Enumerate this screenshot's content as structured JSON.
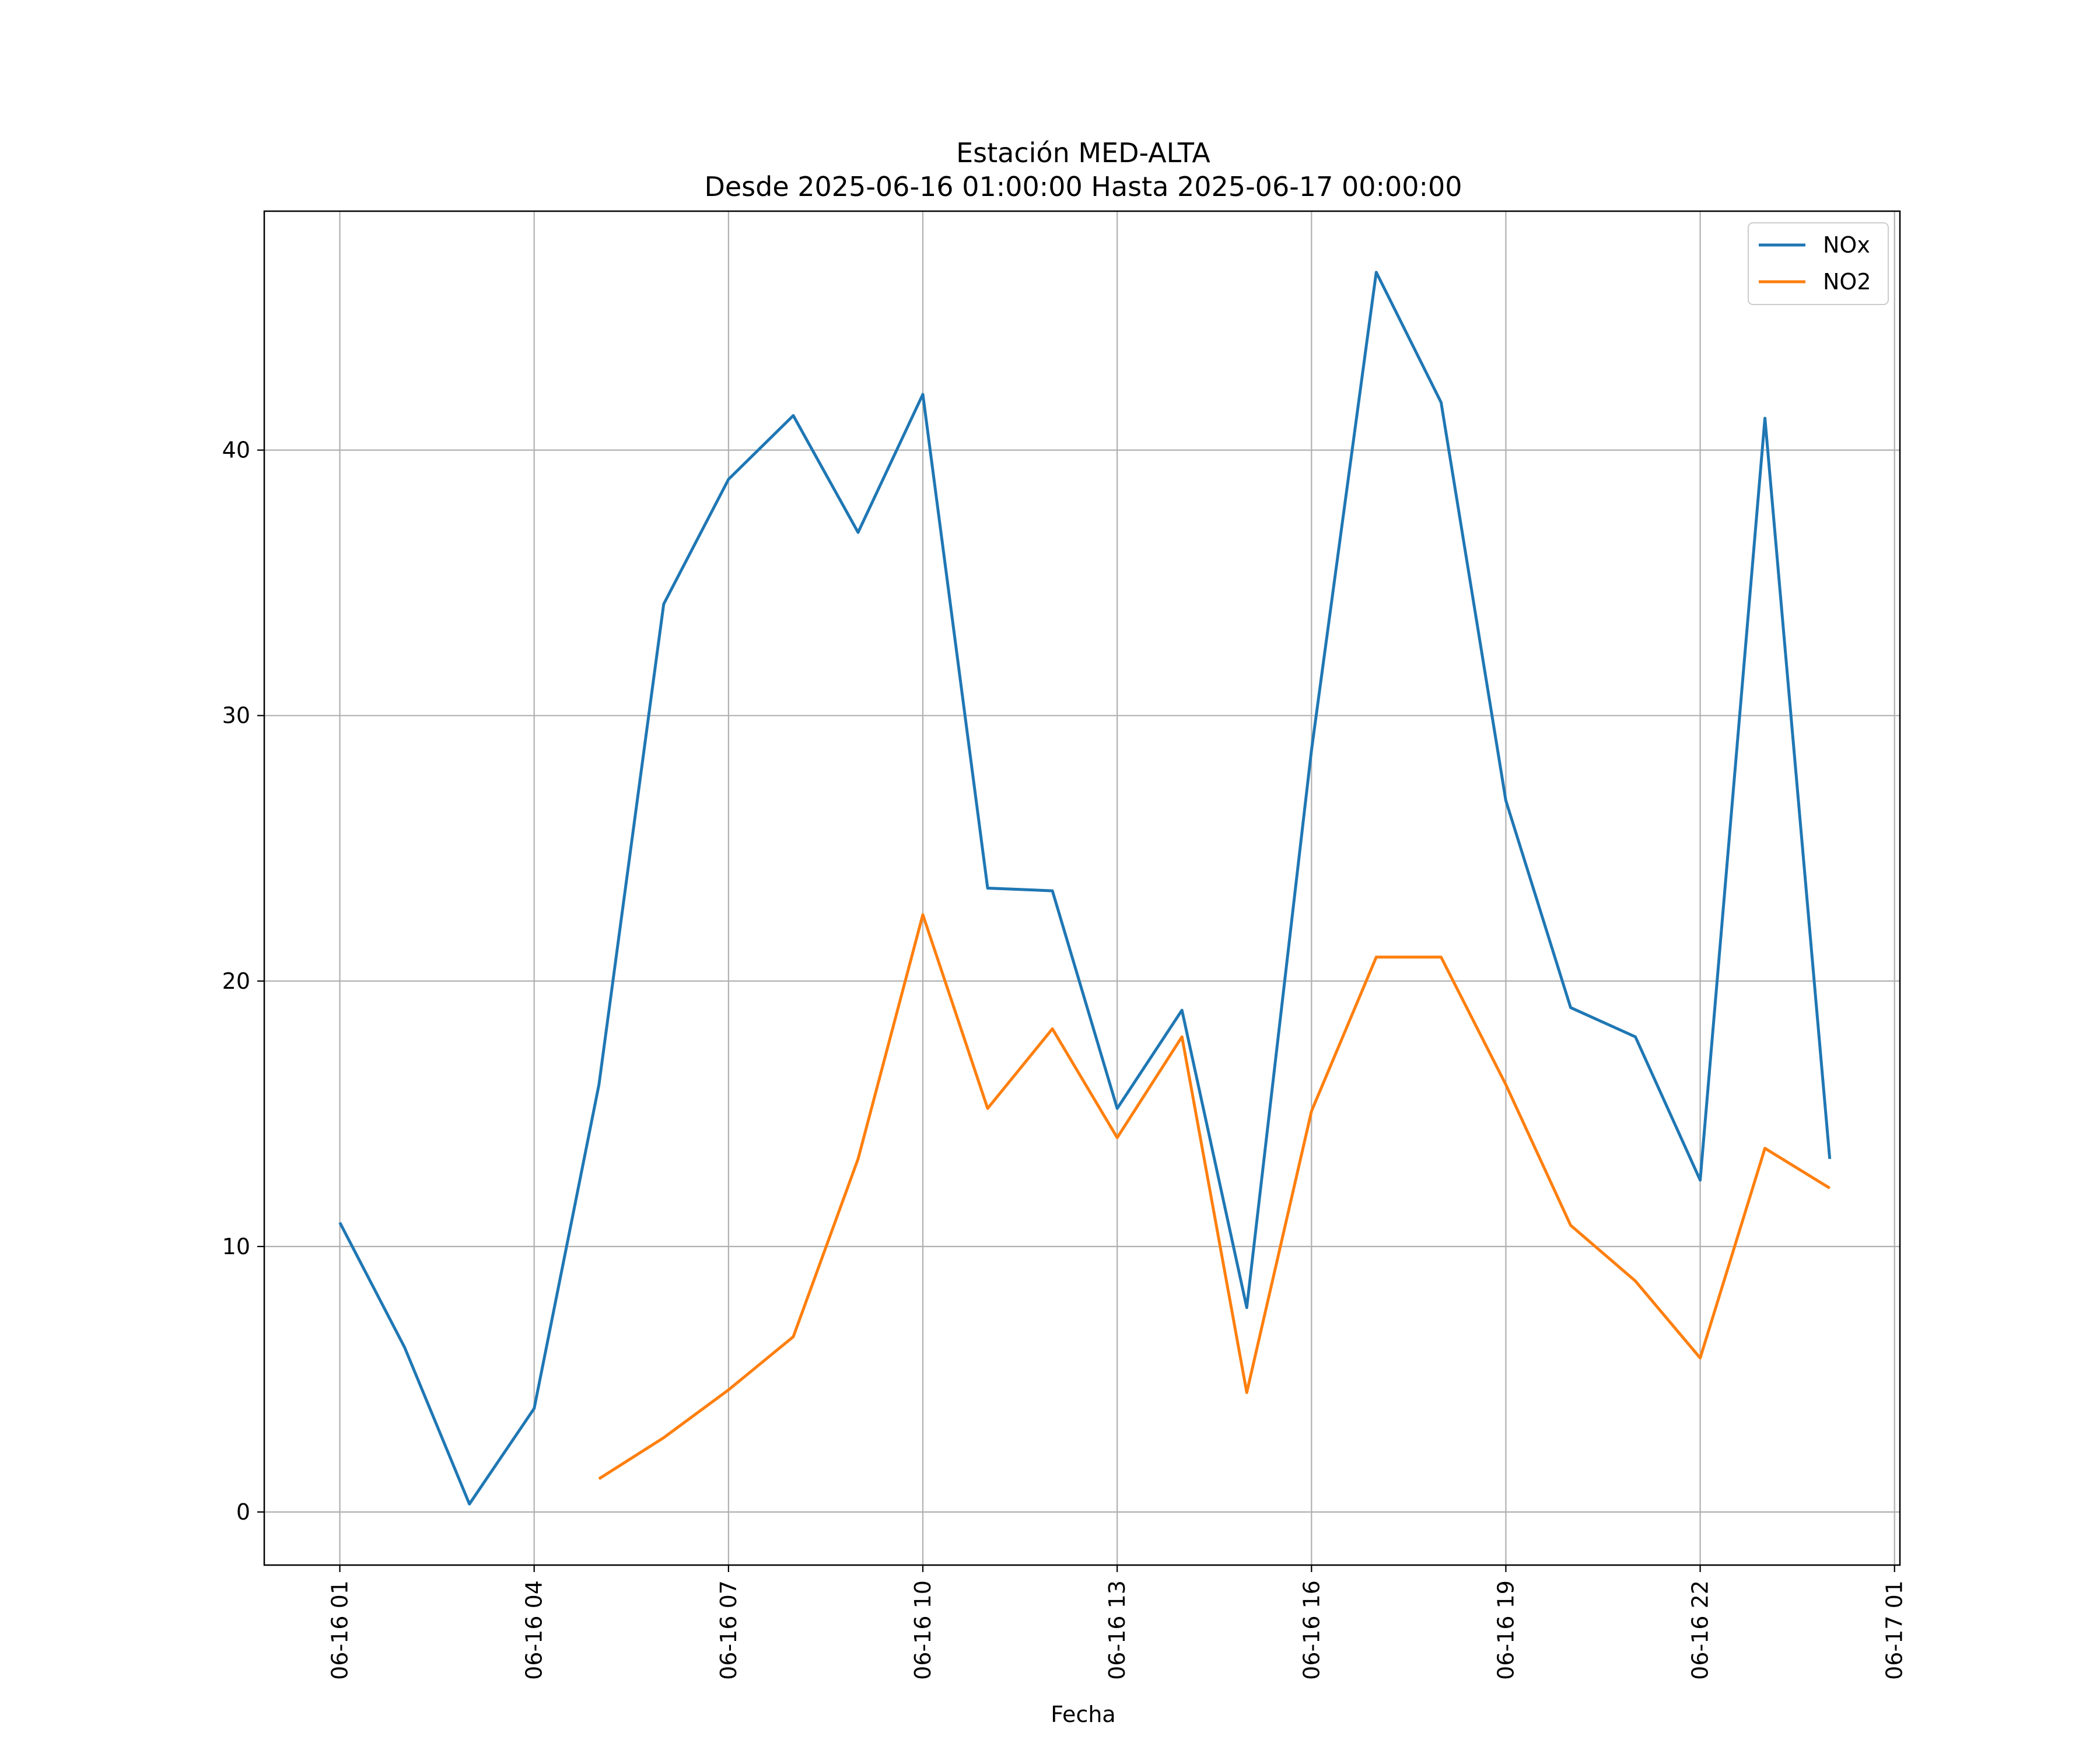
{
  "chart_data": {
    "type": "line",
    "title": "Estación MED-ALTA",
    "subtitle": "Desde 2025-06-16 01:00:00 Hasta 2025-06-17 00:00:00",
    "xlabel": "Fecha",
    "ylabel": "",
    "x": [
      "2025-06-16 01:00",
      "2025-06-16 02:00",
      "2025-06-16 03:00",
      "2025-06-16 04:00",
      "2025-06-16 05:00",
      "2025-06-16 06:00",
      "2025-06-16 07:00",
      "2025-06-16 08:00",
      "2025-06-16 09:00",
      "2025-06-16 10:00",
      "2025-06-16 11:00",
      "2025-06-16 12:00",
      "2025-06-16 13:00",
      "2025-06-16 14:00",
      "2025-06-16 15:00",
      "2025-06-16 16:00",
      "2025-06-16 17:00",
      "2025-06-16 18:00",
      "2025-06-16 19:00",
      "2025-06-16 20:00",
      "2025-06-16 21:00",
      "2025-06-16 22:00",
      "2025-06-16 23:00",
      "2025-06-17 00:00"
    ],
    "series": [
      {
        "name": "NOx",
        "color": "#1f77b4",
        "values": [
          10.9,
          6.2,
          0.3,
          3.9,
          16.1,
          34.2,
          38.9,
          41.3,
          36.9,
          42.1,
          23.5,
          23.4,
          15.2,
          18.9,
          7.7,
          28.7,
          46.7,
          41.8,
          26.8,
          19.0,
          17.9,
          12.5,
          41.2,
          13.3
        ]
      },
      {
        "name": "NO2",
        "color": "#ff7f0e",
        "values": [
          null,
          null,
          null,
          null,
          1.25,
          2.8,
          4.6,
          6.6,
          13.3,
          22.5,
          15.2,
          18.2,
          14.1,
          17.9,
          4.5,
          15.1,
          20.9,
          20.9,
          16.1,
          10.8,
          8.7,
          5.8,
          13.7,
          12.2
        ]
      }
    ],
    "xticks": [
      "06-16 01",
      "06-16 04",
      "06-16 07",
      "06-16 10",
      "06-16 13",
      "06-16 16",
      "06-16 19",
      "06-16 22",
      "06-17 01"
    ],
    "xtick_values": [
      "2025-06-16 01:00",
      "2025-06-16 04:00",
      "2025-06-16 07:00",
      "2025-06-16 10:00",
      "2025-06-16 13:00",
      "2025-06-16 16:00",
      "2025-06-16 19:00",
      "2025-06-16 22:00",
      "2025-06-17 01:00"
    ],
    "xlim": [
      "2025-06-15 23:50",
      "2025-06-17 01:05"
    ],
    "yticks": [
      0,
      10,
      20,
      30,
      40
    ],
    "ylim": [
      -2.0,
      49.0
    ],
    "grid": true,
    "legend_position": "top-right"
  }
}
